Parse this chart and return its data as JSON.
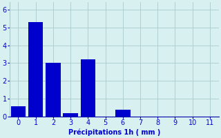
{
  "categories": [
    0,
    1,
    2,
    3,
    4,
    5,
    6,
    7,
    8,
    9,
    10,
    11
  ],
  "values": [
    0.6,
    5.3,
    3.0,
    0.2,
    3.2,
    0.0,
    0.4,
    0.0,
    0.0,
    0.0,
    0.0,
    0.0
  ],
  "bar_color": "#0000cc",
  "background_color": "#d8f0f0",
  "grid_color": "#aacaca",
  "xlabel": "Précipitations 1h ( mm )",
  "xlabel_color": "#0000cc",
  "tick_color": "#0000cc",
  "axis_color": "#0000aa",
  "ylim": [
    0,
    6.4
  ],
  "xlim": [
    -0.5,
    11.5
  ],
  "yticks": [
    0,
    1,
    2,
    3,
    4,
    5,
    6
  ],
  "xticks": [
    0,
    1,
    2,
    3,
    4,
    5,
    6,
    7,
    8,
    9,
    10,
    11
  ],
  "bar_width": 0.85,
  "label_fontsize": 7,
  "tick_fontsize": 7
}
